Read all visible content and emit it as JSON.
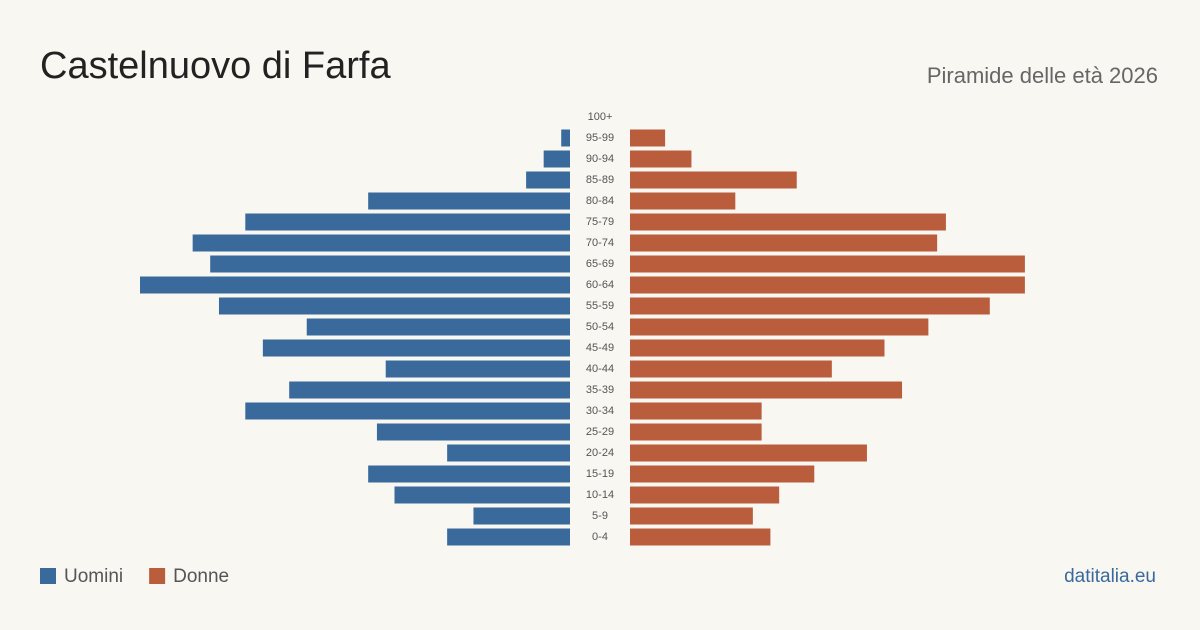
{
  "chart_data": {
    "type": "pyramid",
    "title": "Castelnuovo di Farfa",
    "subtitle": "Piramide delle età 2026",
    "source": "datitalia.eu",
    "categories": [
      "100+",
      "95-99",
      "90-94",
      "85-89",
      "80-84",
      "75-79",
      "70-74",
      "65-69",
      "60-64",
      "55-59",
      "50-54",
      "45-49",
      "40-44",
      "35-39",
      "30-34",
      "25-29",
      "20-24",
      "15-19",
      "10-14",
      "5-9",
      "0-4"
    ],
    "series": [
      {
        "name": "Uomini",
        "color": "#3a6a9c",
        "values": [
          0,
          1,
          3,
          5,
          23,
          37,
          43,
          41,
          49,
          40,
          30,
          35,
          21,
          32,
          37,
          22,
          14,
          23,
          20,
          11,
          14
        ]
      },
      {
        "name": "Donne",
        "color": "#b95d3c",
        "values": [
          0,
          4,
          7,
          19,
          12,
          36,
          35,
          45,
          45,
          41,
          34,
          29,
          23,
          31,
          15,
          15,
          27,
          21,
          17,
          14,
          16
        ]
      }
    ]
  }
}
